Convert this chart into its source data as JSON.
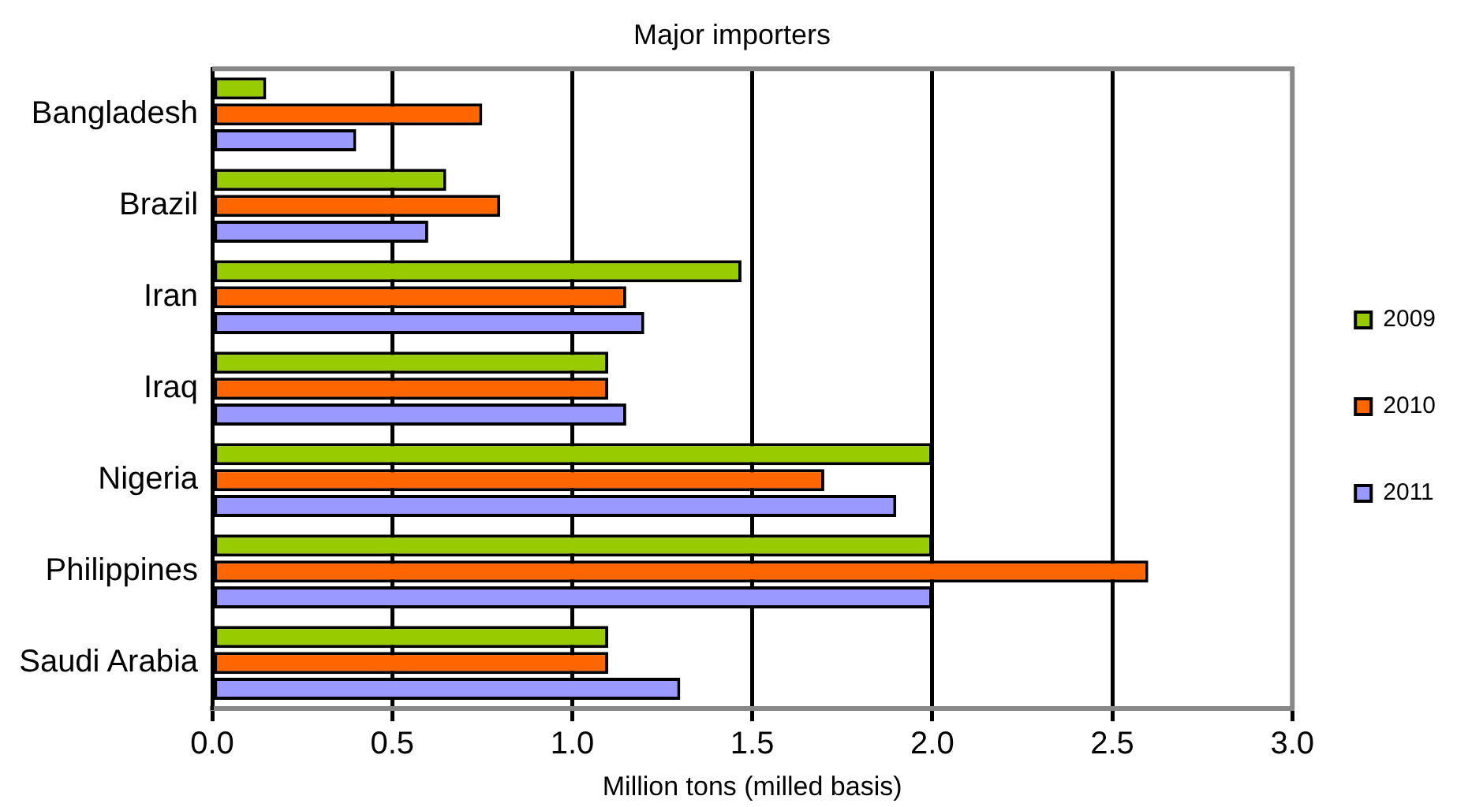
{
  "chart_data": {
    "type": "bar",
    "orientation": "horizontal",
    "title": "Major importers",
    "xlabel": "Million tons (milled basis)",
    "categories": [
      "Bangladesh",
      "Brazil",
      "Iran",
      "Iraq",
      "Nigeria",
      "Philippines",
      "Saudi Arabia"
    ],
    "series": [
      {
        "name": "2009",
        "color": "#99cc00",
        "values": [
          0.15,
          0.65,
          1.47,
          1.1,
          2.0,
          2.0,
          1.1
        ]
      },
      {
        "name": "2010",
        "color": "#ff6600",
        "values": [
          0.75,
          0.8,
          1.15,
          1.1,
          1.7,
          2.6,
          1.1
        ]
      },
      {
        "name": "2011",
        "color": "#9999ff",
        "values": [
          0.4,
          0.6,
          1.2,
          1.15,
          1.9,
          2.0,
          1.3
        ]
      }
    ],
    "xlim": [
      0,
      3
    ],
    "xticks": [
      {
        "value": 0,
        "label": "0.0"
      },
      {
        "value": 0.5,
        "label": "0.5"
      },
      {
        "value": 1,
        "label": "1.0"
      },
      {
        "value": 1.5,
        "label": "1.5"
      },
      {
        "value": 2,
        "label": "2.0"
      },
      {
        "value": 2.5,
        "label": "2.5"
      },
      {
        "value": 3,
        "label": "3.0"
      }
    ],
    "grid": "x",
    "legend": "right"
  }
}
